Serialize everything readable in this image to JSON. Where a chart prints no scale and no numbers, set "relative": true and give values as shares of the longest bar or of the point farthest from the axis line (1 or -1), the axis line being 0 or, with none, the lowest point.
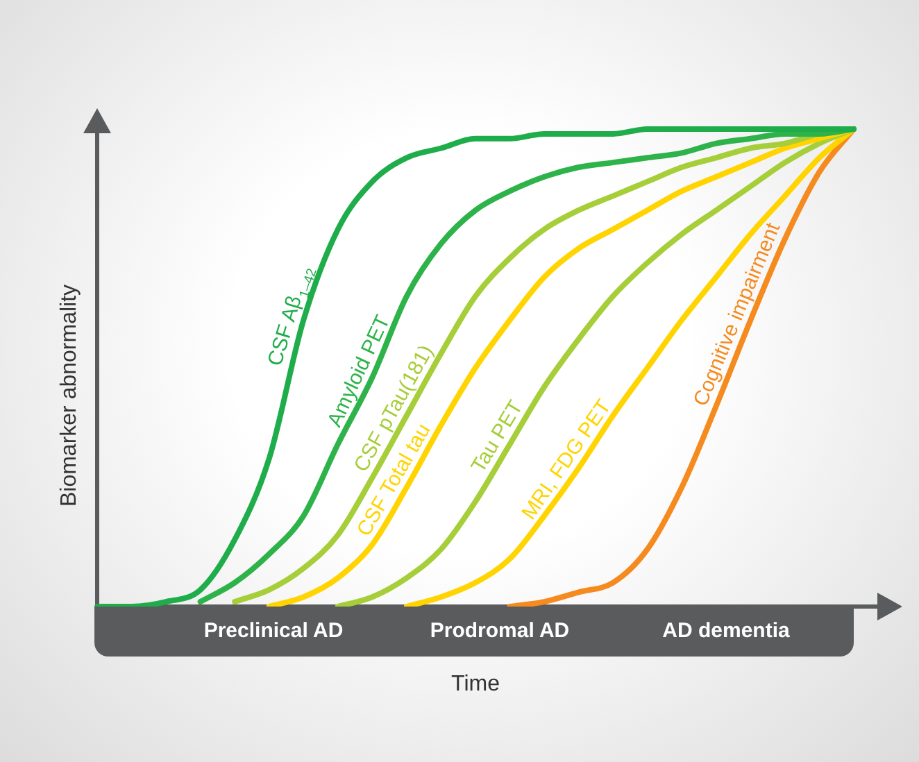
{
  "chart_data": {
    "type": "line",
    "relative": true,
    "xlabel": "Time",
    "ylabel": "Biomarker abnormality",
    "categories": [
      null,
      null,
      null,
      null,
      null,
      null,
      null,
      null,
      null,
      null,
      null,
      null,
      null,
      null,
      null,
      null,
      null,
      null,
      null,
      null,
      null,
      null,
      null
    ],
    "annotations": [
      "Preclinical AD",
      "Prodromal AD",
      "AD dementia"
    ],
    "series": [
      {
        "name": "CSF Aβ$_{1–42}$",
        "color": "#1fad4b",
        "values": [
          0,
          0,
          0.01,
          0.035,
          0.14,
          0.31,
          0.6,
          0.79,
          0.89,
          0.94,
          0.96,
          0.98,
          0.98,
          0.99,
          0.99,
          0.99,
          1,
          1,
          1,
          1,
          1,
          1,
          1
        ]
      },
      {
        "name": "Amyloid PET",
        "color": "#2db34a",
        "values": [
          null,
          null,
          null,
          0.01,
          0.05,
          0.11,
          0.19,
          0.34,
          0.48,
          0.65,
          0.76,
          0.83,
          0.87,
          0.9,
          0.92,
          0.93,
          0.94,
          0.95,
          0.97,
          0.98,
          0.99,
          0.99,
          1
        ]
      },
      {
        "name": "CSF pTau(181)",
        "color": "#a6ce39",
        "values": [
          null,
          null,
          null,
          null,
          0.01,
          0.035,
          0.08,
          0.15,
          0.27,
          0.4,
          0.53,
          0.65,
          0.73,
          0.79,
          0.83,
          0.86,
          0.89,
          0.92,
          0.94,
          0.96,
          0.97,
          0.99,
          1
        ]
      },
      {
        "name": "CSF Total tau",
        "color": "#ffd400",
        "values": [
          null,
          null,
          null,
          null,
          null,
          0,
          0.02,
          0.06,
          0.13,
          0.25,
          0.38,
          0.5,
          0.6,
          0.69,
          0.75,
          0.79,
          0.83,
          0.87,
          0.9,
          0.93,
          0.96,
          0.98,
          1
        ]
      },
      {
        "name": "Tau PET",
        "color": "#a6ce39",
        "values": [
          null,
          null,
          null,
          null,
          null,
          null,
          null,
          0,
          0.02,
          0.06,
          0.12,
          0.22,
          0.34,
          0.46,
          0.56,
          0.65,
          0.72,
          0.78,
          0.83,
          0.88,
          0.93,
          0.97,
          1
        ]
      },
      {
        "name": "MRI, FDG PET",
        "color": "#ffd400",
        "values": [
          null,
          null,
          null,
          null,
          null,
          null,
          null,
          null,
          null,
          0,
          0.02,
          0.05,
          0.1,
          0.19,
          0.29,
          0.4,
          0.5,
          0.6,
          0.69,
          0.78,
          0.86,
          0.94,
          1
        ]
      },
      {
        "name": "Cognitive impairment",
        "color": "#f58a1f",
        "values": [
          null,
          null,
          null,
          null,
          null,
          null,
          null,
          null,
          null,
          null,
          null,
          null,
          0,
          0.01,
          0.03,
          0.05,
          0.12,
          0.25,
          0.42,
          0.6,
          0.77,
          0.91,
          1
        ]
      }
    ]
  }
}
